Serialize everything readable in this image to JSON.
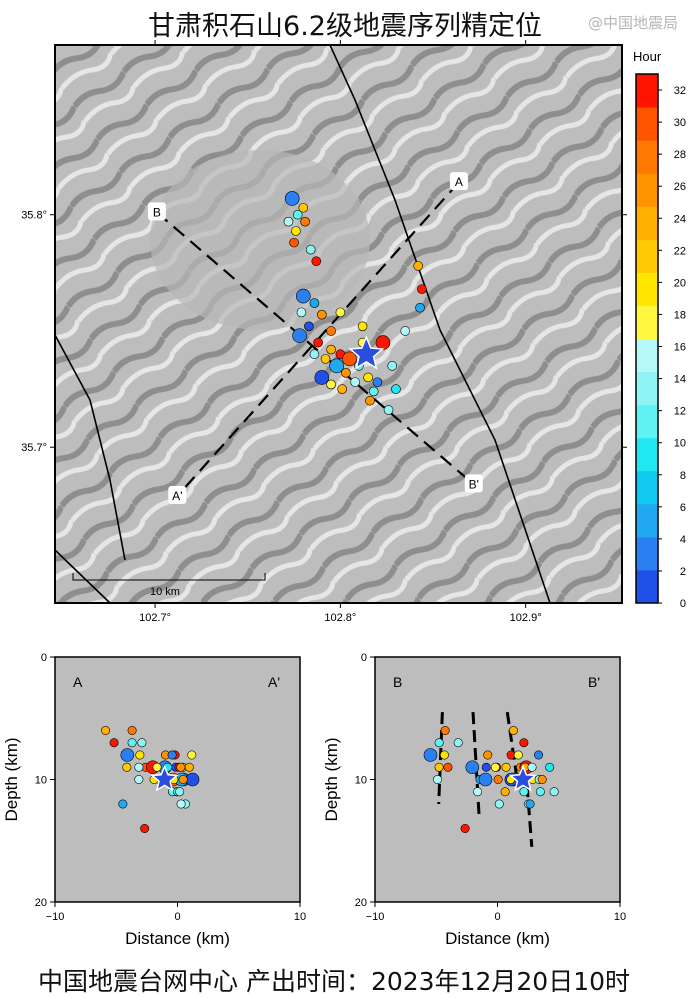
{
  "title": "甘肃积石山6.2级地震序列精定位",
  "footer": "中国地震台网中心  产出时间：2023年12月20日10时",
  "watermark": "@中国地震局",
  "chart_data": [
    {
      "type": "scatter",
      "panel": "map",
      "xticks": [
        "102.7°",
        "102.8°",
        "102.9°"
      ],
      "xtick_values": [
        102.7,
        102.8,
        102.9
      ],
      "yticks": [
        "35.7°",
        "35.8°"
      ],
      "ytick_values": [
        35.7,
        35.8
      ],
      "xlim": [
        102.646,
        102.952
      ],
      "ylim": [
        35.633,
        35.873
      ],
      "scale_bar": "10 km",
      "profiles": [
        {
          "start": "A",
          "end": "A'",
          "from": [
            102.864,
            35.814
          ],
          "to": [
            102.712,
            35.679
          ]
        },
        {
          "start": "B",
          "end": "B'",
          "from": [
            102.701,
            35.801
          ],
          "to": [
            102.872,
            35.684
          ]
        }
      ],
      "mainshock": {
        "lon": 102.814,
        "lat": 35.74,
        "depth": 10
      },
      "colorbar": {
        "label": "Hour",
        "min": 0,
        "max": 33,
        "ticks": [
          0,
          2,
          4,
          6,
          8,
          10,
          12,
          14,
          16,
          18,
          20,
          22,
          24,
          26,
          28,
          30,
          32
        ],
        "colors": [
          "#2050e8",
          "#2a80f0",
          "#20a8f0",
          "#10c8f0",
          "#20e8f0",
          "#60f2f2",
          "#90f4f4",
          "#b4f8f8",
          "#fff640",
          "#ffe600",
          "#ffc800",
          "#ffb000",
          "#ff9400",
          "#ff7800",
          "#ff5400",
          "#ff1400"
        ]
      },
      "events": [
        [
          102.774,
          35.807,
          8,
          3,
          "L"
        ],
        [
          102.777,
          35.8,
          7,
          12
        ],
        [
          102.78,
          35.803,
          9,
          22
        ],
        [
          102.772,
          35.797,
          10,
          15
        ],
        [
          102.776,
          35.793,
          8,
          20
        ],
        [
          102.781,
          35.797,
          6,
          28
        ],
        [
          102.775,
          35.788,
          9,
          30
        ],
        [
          102.784,
          35.785,
          7,
          13
        ],
        [
          102.78,
          35.765,
          9,
          4,
          "L"
        ],
        [
          102.786,
          35.762,
          10,
          6
        ],
        [
          102.779,
          35.758,
          11,
          16
        ],
        [
          102.79,
          35.757,
          8,
          25
        ],
        [
          102.783,
          35.752,
          9,
          2
        ],
        [
          102.795,
          35.75,
          10,
          27
        ],
        [
          102.778,
          35.748,
          10,
          4,
          "L"
        ],
        [
          102.788,
          35.745,
          9,
          31
        ],
        [
          102.795,
          35.742,
          11,
          24
        ],
        [
          102.8,
          35.74,
          8,
          32
        ],
        [
          102.792,
          35.738,
          9,
          21
        ],
        [
          102.805,
          35.738,
          10,
          29,
          "L"
        ],
        [
          102.786,
          35.74,
          12,
          14
        ],
        [
          102.798,
          35.735,
          10,
          5,
          "L"
        ],
        [
          102.803,
          35.732,
          9,
          26
        ],
        [
          102.81,
          35.735,
          11,
          11
        ],
        [
          102.815,
          35.73,
          10,
          19
        ],
        [
          102.82,
          35.728,
          8,
          3
        ],
        [
          102.823,
          35.745,
          9,
          33,
          "L"
        ],
        [
          102.812,
          35.745,
          10,
          18
        ],
        [
          102.808,
          35.728,
          12,
          15
        ],
        [
          102.818,
          35.724,
          11,
          12
        ],
        [
          102.79,
          35.73,
          10,
          2,
          "L"
        ],
        [
          102.801,
          35.725,
          9,
          23
        ],
        [
          102.795,
          35.727,
          8,
          17
        ],
        [
          102.828,
          35.735,
          10,
          14
        ],
        [
          102.83,
          35.725,
          9,
          10
        ],
        [
          102.826,
          35.716,
          11,
          13
        ],
        [
          102.816,
          35.72,
          10,
          25
        ],
        [
          102.842,
          35.778,
          6,
          24
        ],
        [
          102.844,
          35.768,
          7,
          32
        ],
        [
          102.843,
          35.76,
          12,
          5
        ],
        [
          102.835,
          35.75,
          9,
          16
        ],
        [
          102.812,
          35.752,
          10,
          20
        ],
        [
          102.787,
          35.78,
          14,
          31
        ],
        [
          102.8,
          35.758,
          9,
          17
        ]
      ]
    },
    {
      "type": "scatter",
      "panel": "cross-section",
      "profile": "A-A'",
      "label_left": "A",
      "label_right": "A'",
      "xlabel": "Distance (km)",
      "ylabel": "Depth (km)",
      "xlim": [
        -10,
        10
      ],
      "ylim": [
        0,
        20
      ],
      "xticks": [
        "−10",
        "0",
        "10"
      ],
      "yticks": [
        "0",
        "10",
        "20"
      ]
    },
    {
      "type": "scatter",
      "panel": "cross-section",
      "profile": "B-B'",
      "label_left": "B",
      "label_right": "B'",
      "xlabel": "Distance (km)",
      "ylabel": "Depth (km)",
      "xlim": [
        -10,
        10
      ],
      "ylim": [
        0,
        20
      ],
      "xticks": [
        "−10",
        "0",
        "10"
      ],
      "yticks": [
        "0",
        "10",
        "20"
      ]
    }
  ]
}
